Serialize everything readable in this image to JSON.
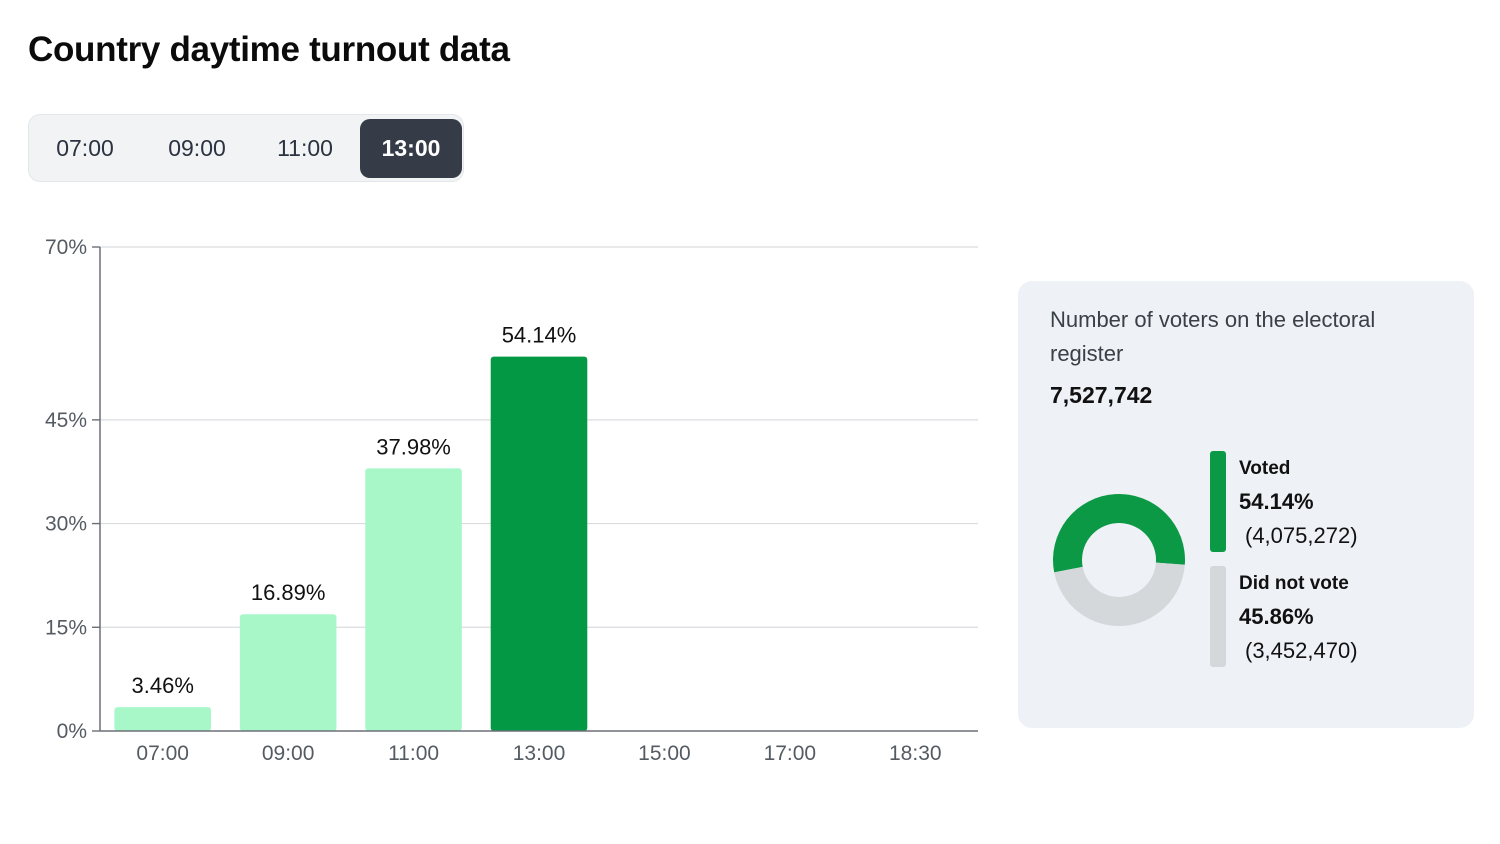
{
  "page": {
    "title": "Country daytime turnout data"
  },
  "time_tabs": {
    "items": [
      "07:00",
      "09:00",
      "11:00",
      "13:00"
    ],
    "selected": "13:00"
  },
  "chart_data": {
    "type": "bar",
    "categories": [
      "07:00",
      "09:00",
      "11:00",
      "13:00",
      "15:00",
      "17:00",
      "18:30"
    ],
    "values": [
      3.46,
      16.89,
      37.98,
      54.14,
      null,
      null,
      null
    ],
    "value_labels": [
      "3.46%",
      "16.89%",
      "37.98%",
      "54.14%",
      "",
      "",
      ""
    ],
    "y_ticks": [
      0,
      15,
      30,
      45,
      70
    ],
    "y_tick_labels": [
      "0%",
      "15%",
      "30%",
      "45%",
      "70%"
    ],
    "ylim": [
      0,
      70
    ],
    "grid": true,
    "highlighted_category": "13:00",
    "colors": {
      "bar": "#a7f7c9",
      "bar_highlight": "#039843",
      "grid": "#d9dcdf",
      "axis": "#6b7076"
    }
  },
  "summary": {
    "register_label": "Number of voters on the electoral register",
    "register_value": "7,527,742",
    "donut": {
      "type": "pie",
      "values": [
        54.14,
        45.86
      ],
      "labels": [
        "Voted",
        "Did not vote"
      ],
      "colors": [
        "#0c9945",
        "#d4d8db"
      ]
    },
    "legend": [
      {
        "label": "Voted",
        "percent": "54.14%",
        "count": "(4,075,272)",
        "color": "#0c9945"
      },
      {
        "label": "Did not vote",
        "percent": "45.86%",
        "count": "(3,452,470)",
        "color": "#d4d8db"
      }
    ]
  }
}
